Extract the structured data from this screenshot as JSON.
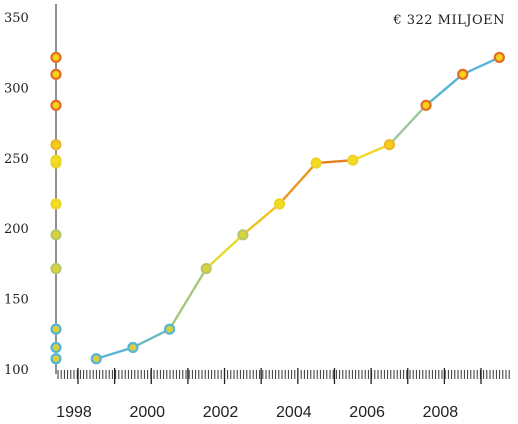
{
  "chart_data": {
    "type": "line",
    "title": "",
    "xlabel": "",
    "ylabel": "",
    "annotation": "€ 322 MILJOEN",
    "x": [
      1998.5,
      1999.5,
      2000.5,
      2001.5,
      2002.5,
      2003.5,
      2004.5,
      2005.5,
      2006.5,
      2007.5,
      2008.5,
      2009.5
    ],
    "values": [
      108,
      116,
      129,
      172,
      196,
      218,
      247,
      249,
      260,
      288,
      310,
      322
    ],
    "xlim": [
      1997.4,
      2009.9
    ],
    "ylim": [
      100,
      350
    ],
    "y_ticks": [
      100,
      150,
      200,
      250,
      300,
      350
    ],
    "y_tick_labels": [
      "100",
      "150",
      "200",
      "250",
      "300",
      "350"
    ],
    "x_ticks": [
      1998,
      2000,
      2002,
      2004,
      2006,
      2008
    ],
    "x_tick_labels": [
      "1998",
      "2000",
      "2002",
      "2004",
      "2006",
      "2008"
    ],
    "rug_values": [
      108,
      116,
      129,
      172,
      196,
      218,
      247,
      249,
      260,
      288,
      310,
      322
    ],
    "colors": {
      "low": "#56b4d8",
      "mid": "#f2dc1e",
      "high": "#e46a22",
      "axis": "#222222",
      "tick": "#333333"
    }
  }
}
